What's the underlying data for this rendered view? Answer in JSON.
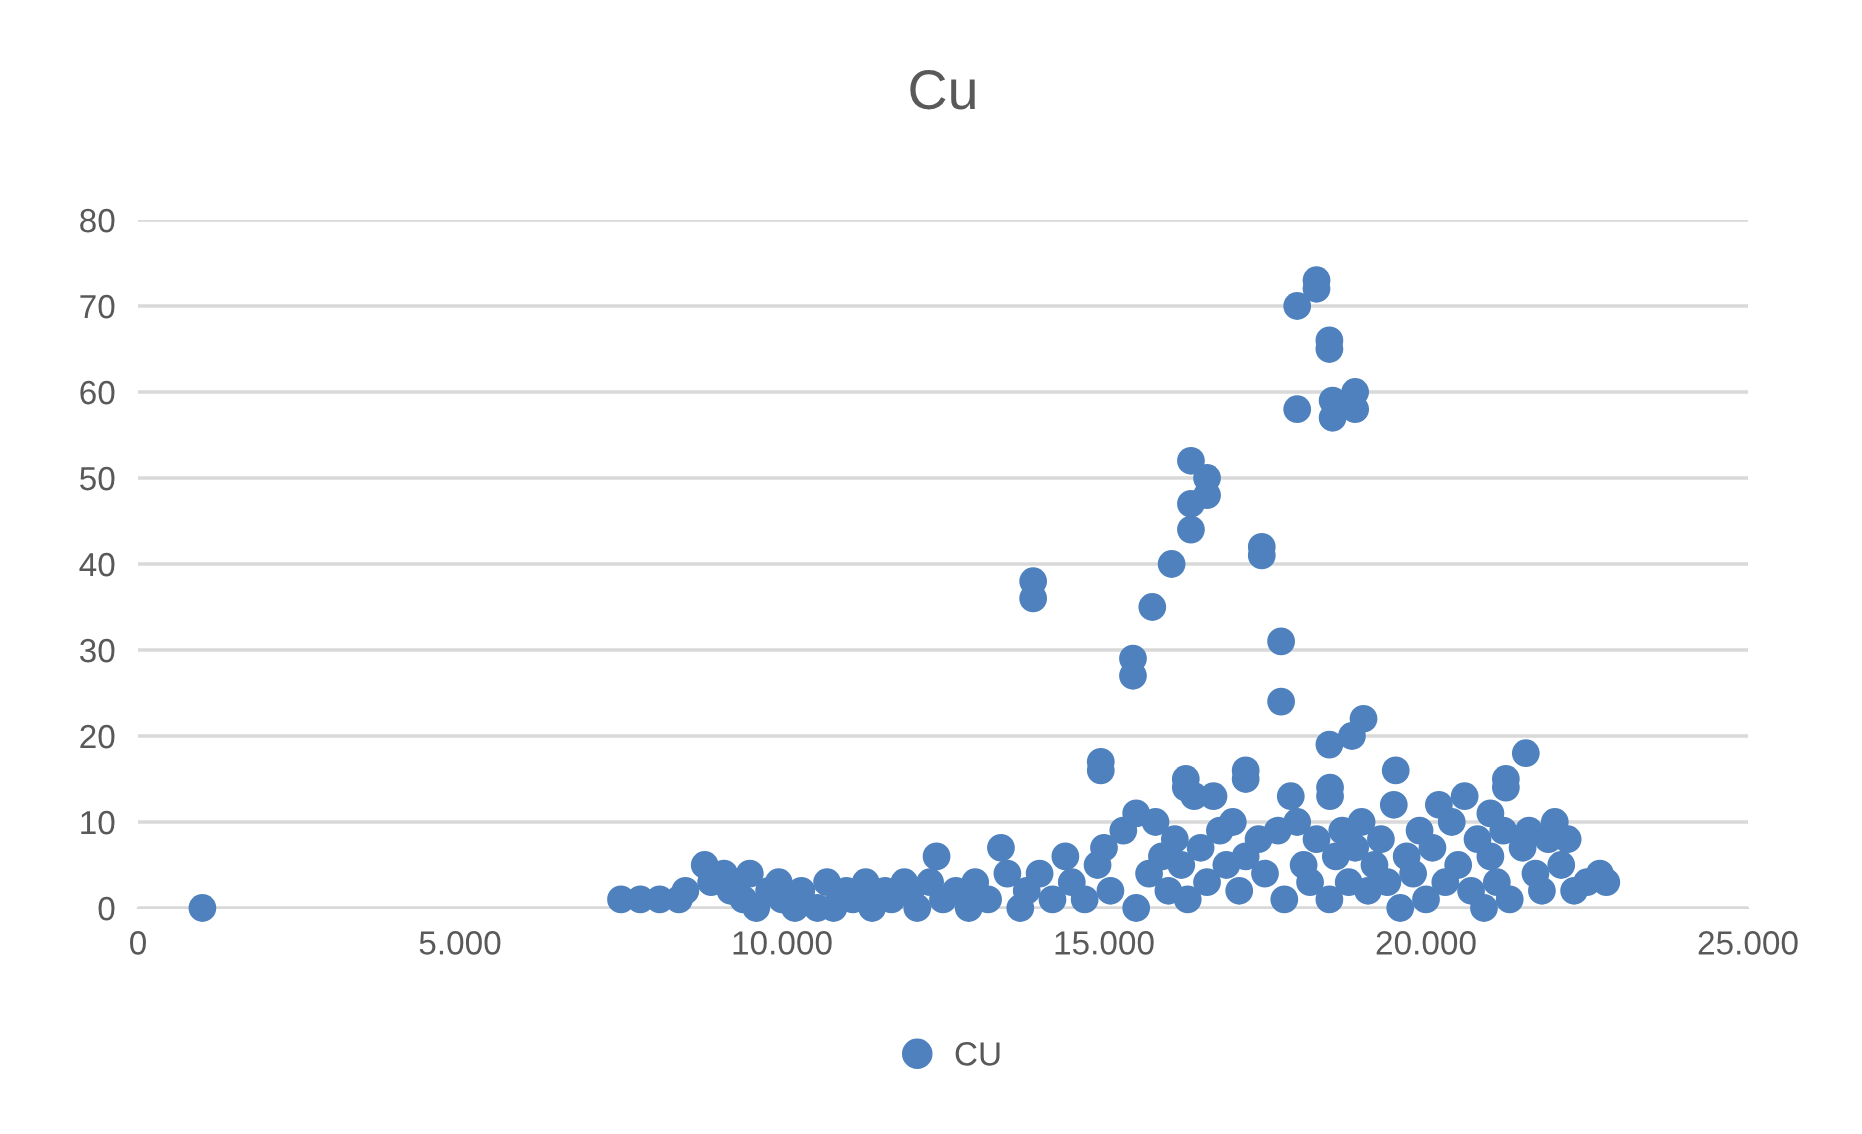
{
  "chart_data": {
    "type": "scatter",
    "title": "Cu",
    "xlim": [
      0,
      25000
    ],
    "ylim": [
      0,
      80
    ],
    "xticks": [
      0,
      {
        "value": 5000,
        "label": "5.000"
      },
      {
        "value": 10000,
        "label": "10.000"
      },
      {
        "value": 15000,
        "label": "15.000"
      },
      {
        "value": 20000,
        "label": "20.000"
      },
      {
        "value": 25000,
        "label": "25.000"
      }
    ],
    "yticks": [
      0,
      10,
      20,
      30,
      40,
      50,
      60,
      70,
      80
    ],
    "grid": "y",
    "legend": "bottom",
    "marker": "circle",
    "series": [
      {
        "name": "CU",
        "color": "#4e81bd",
        "x": [
          1000,
          7500,
          7800,
          8100,
          8400,
          8500,
          8800,
          8900,
          9100,
          9200,
          9400,
          9500,
          9600,
          9800,
          10000,
          9950,
          10200,
          10300,
          10550,
          10700,
          10800,
          11000,
          11100,
          11300,
          11400,
          11600,
          11700,
          11900,
          12000,
          12100,
          12300,
          12400,
          12500,
          12700,
          12900,
          13000,
          13200,
          13400,
          13500,
          13700,
          13800,
          14000,
          14200,
          14400,
          14500,
          14700,
          14900,
          15000,
          15100,
          15300,
          15500,
          15500,
          15700,
          15800,
          15900,
          16000,
          16100,
          16200,
          16300,
          16400,
          16500,
          16600,
          16700,
          16800,
          16900,
          17000,
          17100,
          17200,
          17400,
          17500,
          17700,
          17800,
          17900,
          18000,
          18100,
          18200,
          18300,
          18500,
          18600,
          18700,
          18800,
          18900,
          19000,
          19100,
          19200,
          19300,
          19400,
          19500,
          19600,
          19700,
          19800,
          19900,
          20000,
          20100,
          20200,
          20300,
          20400,
          20500,
          20600,
          20700,
          20800,
          20900,
          21000,
          21000,
          21100,
          21200,
          21300,
          21500,
          21600,
          21700,
          21800,
          21900,
          22000,
          22100,
          22200,
          22300,
          22500,
          22700,
          22800,
          13900,
          13900,
          15450,
          15450,
          15750,
          16050,
          16350,
          16600,
          16600,
          16350,
          16350,
          17450,
          17450,
          17750,
          17750,
          18300,
          18300,
          18500,
          18500,
          18000,
          18900,
          18900,
          18000,
          18550,
          18550,
          19030,
          18850,
          18500,
          14950,
          14950,
          16270,
          16270,
          17200,
          17200,
          19530,
          21550,
          21240,
          21240,
          18510,
          18510
        ],
        "values": [
          0,
          1,
          1,
          1,
          1,
          2,
          5,
          3,
          4,
          2,
          1,
          4,
          0,
          2,
          1,
          3,
          0,
          2,
          0,
          3,
          0,
          2,
          1,
          3,
          0,
          2,
          1,
          3,
          2,
          0,
          3,
          6,
          1,
          2,
          0,
          3,
          1,
          7,
          4,
          0,
          2,
          4,
          1,
          6,
          3,
          1,
          5,
          7,
          2,
          9,
          11,
          0,
          4,
          10,
          6,
          2,
          8,
          5,
          1,
          13,
          7,
          3,
          13,
          9,
          5,
          10,
          2,
          6,
          8,
          4,
          9,
          1,
          13,
          10,
          5,
          3,
          8,
          1,
          6,
          9,
          3,
          7,
          10,
          2,
          5,
          8,
          3,
          12,
          0,
          6,
          4,
          9,
          1,
          7,
          12,
          3,
          10,
          5,
          13,
          2,
          8,
          0,
          11,
          6,
          3,
          9,
          1,
          7,
          9,
          4,
          2,
          8,
          10,
          5,
          8,
          2,
          3,
          4,
          3,
          38,
          36,
          29,
          27,
          35,
          40,
          52,
          50,
          48,
          47,
          44,
          42,
          41,
          31,
          24,
          73,
          72,
          66,
          65,
          70,
          60,
          58,
          58,
          59,
          57,
          22,
          20,
          19,
          17,
          16,
          15,
          14,
          16,
          15,
          16,
          18,
          15,
          14,
          13,
          14
        ]
      }
    ]
  }
}
